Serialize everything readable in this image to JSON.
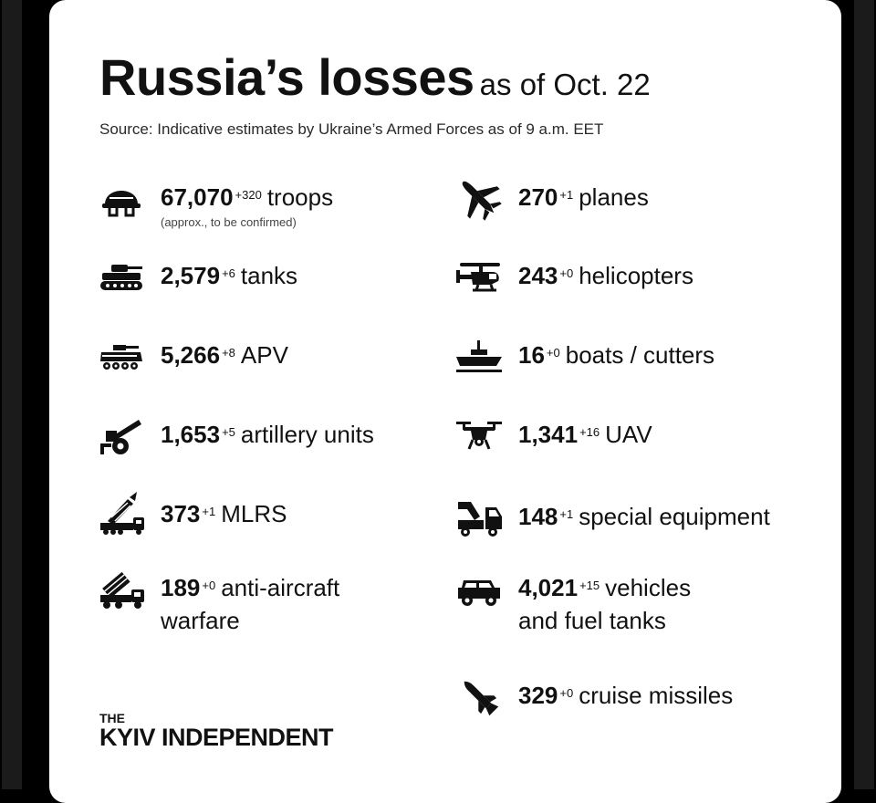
{
  "title": {
    "main": "Russia’s losses",
    "sub": "as of Oct. 22"
  },
  "source": "Source: Indicative estimates by Ukraine’s Armed Forces as of 9 a.m. EET",
  "items": [
    {
      "icon": "helmet-icon",
      "number": "67,070",
      "delta": "+320",
      "label": "troops",
      "note": "(approx., to be confirmed)"
    },
    {
      "icon": "plane-icon",
      "number": "270",
      "delta": "+1",
      "label": "planes"
    },
    {
      "icon": "tank-icon",
      "number": "2,579",
      "delta": "+6",
      "label": "tanks"
    },
    {
      "icon": "helicopter-icon",
      "number": "243",
      "delta": "+0",
      "label": "helicopters"
    },
    {
      "icon": "apv-icon",
      "number": "5,266",
      "delta": "+8",
      "label": "APV"
    },
    {
      "icon": "boat-icon",
      "number": "16",
      "delta": "+0",
      "label": "boats / cutters"
    },
    {
      "icon": "artillery-icon",
      "number": "1,653",
      "delta": "+5",
      "label": "artillery units"
    },
    {
      "icon": "drone-icon",
      "number": "1,341",
      "delta": "+16",
      "label": "UAV"
    },
    {
      "icon": "mlrs-icon",
      "number": "373",
      "delta": "+1",
      "label": "MLRS"
    },
    {
      "icon": "special-equipment-icon",
      "number": "148",
      "delta": "+1",
      "label": "special equipment"
    },
    {
      "icon": "anti-aircraft-icon",
      "number": "189",
      "delta": "+0",
      "label": "anti-aircraft",
      "label2": "warfare"
    },
    {
      "icon": "jeep-icon",
      "number": "4,021",
      "delta": "+15",
      "label": "vehicles",
      "label2": "and fuel tanks"
    },
    {
      "icon": "missile-icon",
      "number": "329",
      "delta": "+0",
      "label": "cruise missiles"
    }
  ],
  "logo": {
    "the": "THE",
    "name": "KYIV INDEPENDENT"
  }
}
